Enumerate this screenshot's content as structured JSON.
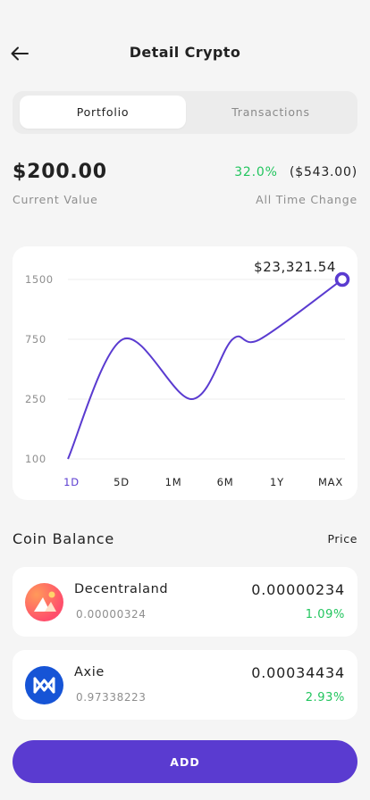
{
  "header": {
    "title": "Detail Crypto",
    "back_icon": "arrow-left-icon"
  },
  "tabs": [
    {
      "label": "Portfolio",
      "active": true
    },
    {
      "label": "Transactions",
      "active": false
    }
  ],
  "summary": {
    "current_value": "$200.00",
    "current_value_label": "Current Value",
    "change_percent": "32.0%",
    "change_amount": "($543.00)",
    "change_label": "All Time Change"
  },
  "chart_data": {
    "type": "line",
    "highlight_label": "$23,321.54",
    "y_ticks": [
      "1500",
      "750",
      "250",
      "100"
    ],
    "ranges": [
      "1D",
      "5D",
      "1M",
      "6M",
      "1Y",
      "MAX"
    ],
    "selected_range": "1D",
    "x": [
      0,
      0.2,
      0.45,
      0.6,
      0.7,
      1.0
    ],
    "y": [
      100,
      750,
      250,
      750,
      750,
      1500
    ],
    "line_color": "#5a3bd0"
  },
  "coins": {
    "heading": "Coin Balance",
    "price_heading": "Price",
    "items": [
      {
        "name": "Decentraland",
        "amount": "0.00000324",
        "price": "0.00000234",
        "change": "1.09%",
        "icon": "decentraland-icon"
      },
      {
        "name": "Axie",
        "amount": "0.97338223",
        "price": "0.00034434",
        "change": "2.93%",
        "icon": "axie-icon"
      }
    ]
  },
  "actions": {
    "add_label": "ADD"
  },
  "colors": {
    "accent": "#5a3bd0",
    "positive": "#22c55e"
  }
}
